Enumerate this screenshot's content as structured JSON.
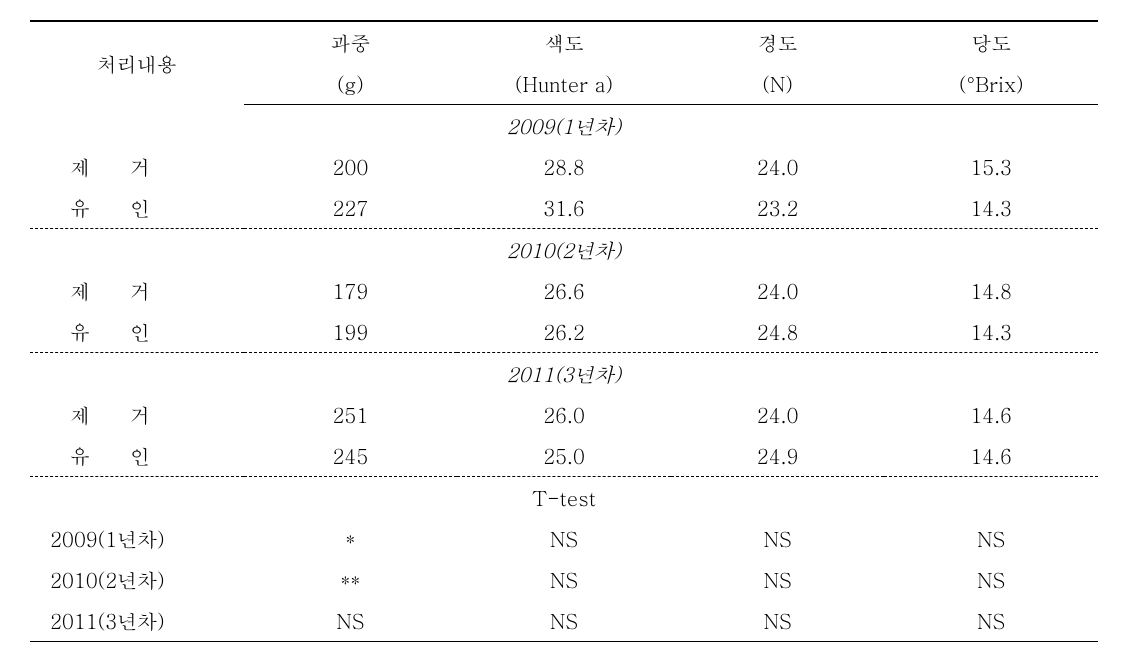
{
  "headers": {
    "treatment": "처리내용",
    "weight": "과중",
    "weight_unit": "(g)",
    "color": "색도",
    "color_unit": "(Hunter a)",
    "hardness": "경도",
    "hardness_unit": "(N)",
    "sugar": "당도",
    "sugar_unit": "(°Brix)"
  },
  "sections": {
    "y2009": "2009(1년차)",
    "y2010": "2010(2년차)",
    "y2011": "2011(3년차)",
    "ttest": "T-test"
  },
  "treatments": {
    "remove": "제  거",
    "train": "유  인"
  },
  "data": {
    "y2009": {
      "remove": {
        "weight": "200",
        "color": "28.8",
        "hardness": "24.0",
        "sugar": "15.3"
      },
      "train": {
        "weight": "227",
        "color": "31.6",
        "hardness": "23.2",
        "sugar": "14.3"
      }
    },
    "y2010": {
      "remove": {
        "weight": "179",
        "color": "26.6",
        "hardness": "24.0",
        "sugar": "14.8"
      },
      "train": {
        "weight": "199",
        "color": "26.2",
        "hardness": "24.8",
        "sugar": "14.3"
      }
    },
    "y2011": {
      "remove": {
        "weight": "251",
        "color": "26.0",
        "hardness": "24.0",
        "sugar": "14.6"
      },
      "train": {
        "weight": "245",
        "color": "25.0",
        "hardness": "24.9",
        "sugar": "14.6"
      }
    }
  },
  "ttest": {
    "y2009": {
      "label": "2009(1년차)",
      "weight": "*",
      "color": "NS",
      "hardness": "NS",
      "sugar": "NS"
    },
    "y2010": {
      "label": "2010(2년차)",
      "weight": "**",
      "color": "NS",
      "hardness": "NS",
      "sugar": "NS"
    },
    "y2011": {
      "label": "2011(3년차)",
      "weight": "NS",
      "color": "NS",
      "hardness": "NS",
      "sugar": "NS"
    }
  }
}
